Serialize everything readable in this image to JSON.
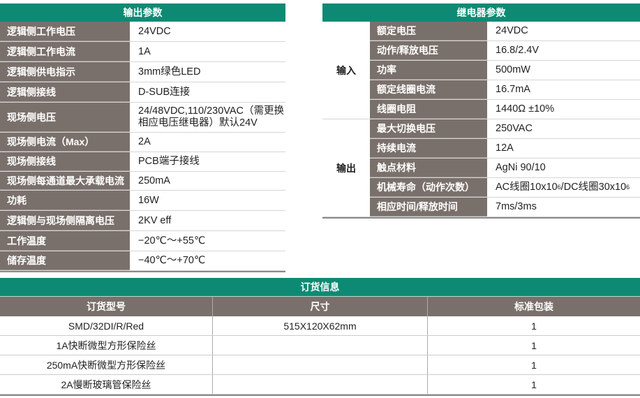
{
  "output_params": {
    "title": "输出参数",
    "rows": [
      {
        "label": "逻辑侧工作电压",
        "value": "24VDC"
      },
      {
        "label": "逻辑侧工作电流",
        "value": "1A"
      },
      {
        "label": "逻辑侧供电指示",
        "value": "3mm绿色LED"
      },
      {
        "label": "逻辑侧接线",
        "value": "D-SUB连接"
      },
      {
        "label": "现场侧电压",
        "value": "24/48VDC,110/230VAC（需更换相应电压继电器）默认24V"
      },
      {
        "label": "现场侧电流（Max）",
        "value": "2A"
      },
      {
        "label": "现场侧接线",
        "value": "PCB端子接线"
      },
      {
        "label": "现场侧每通道最大承载电流",
        "value": "250mA"
      },
      {
        "label": "功耗",
        "value": "16W"
      },
      {
        "label": "逻辑侧与现场侧隔离电压",
        "value": "2KV eff"
      },
      {
        "label": "工作温度",
        "value": "−20℃～+55℃"
      },
      {
        "label": "储存温度",
        "value": "−40℃～+70℃"
      }
    ]
  },
  "relay_params": {
    "title": "继电器参数",
    "groups": [
      {
        "name": "输入",
        "rows": [
          {
            "label": "额定电压",
            "value": "24VDC"
          },
          {
            "label": "动作/释放电压",
            "value": "16.8/2.4V"
          },
          {
            "label": "功率",
            "value": "500mW"
          },
          {
            "label": "额定线圈电流",
            "value": "16.7mA"
          },
          {
            "label": "线圈电阻",
            "value": "1440Ω ±10%"
          }
        ]
      },
      {
        "name": "输出",
        "rows": [
          {
            "label": "最大切换电压",
            "value": "250VAC"
          },
          {
            "label": "持续电流",
            "value": "12A"
          },
          {
            "label": "触点材料",
            "value": "AgNi 90/10"
          },
          {
            "label": "机械寿命（动作次数）",
            "value_parts": [
              "AC线圈10x10",
              "6",
              "/DC线圈30x10",
              "6"
            ]
          },
          {
            "label": "相应时间/释放时间",
            "value": "7ms/3ms"
          }
        ]
      }
    ]
  },
  "order_info": {
    "title": "订货信息",
    "columns": [
      "订货型号",
      "尺寸",
      "标准包装"
    ],
    "rows": [
      [
        "SMD/32DI/R/Red",
        "515X120X62mm",
        "1"
      ],
      [
        "1A快断微型方形保险丝",
        "",
        "1"
      ],
      [
        "250mA快断微型方形保险丝",
        "",
        "1"
      ],
      [
        "2A慢断玻璃管保险丝",
        "",
        "1"
      ]
    ]
  },
  "colors": {
    "header_green": "#0e8a74",
    "label_gray": "#7a706b"
  }
}
